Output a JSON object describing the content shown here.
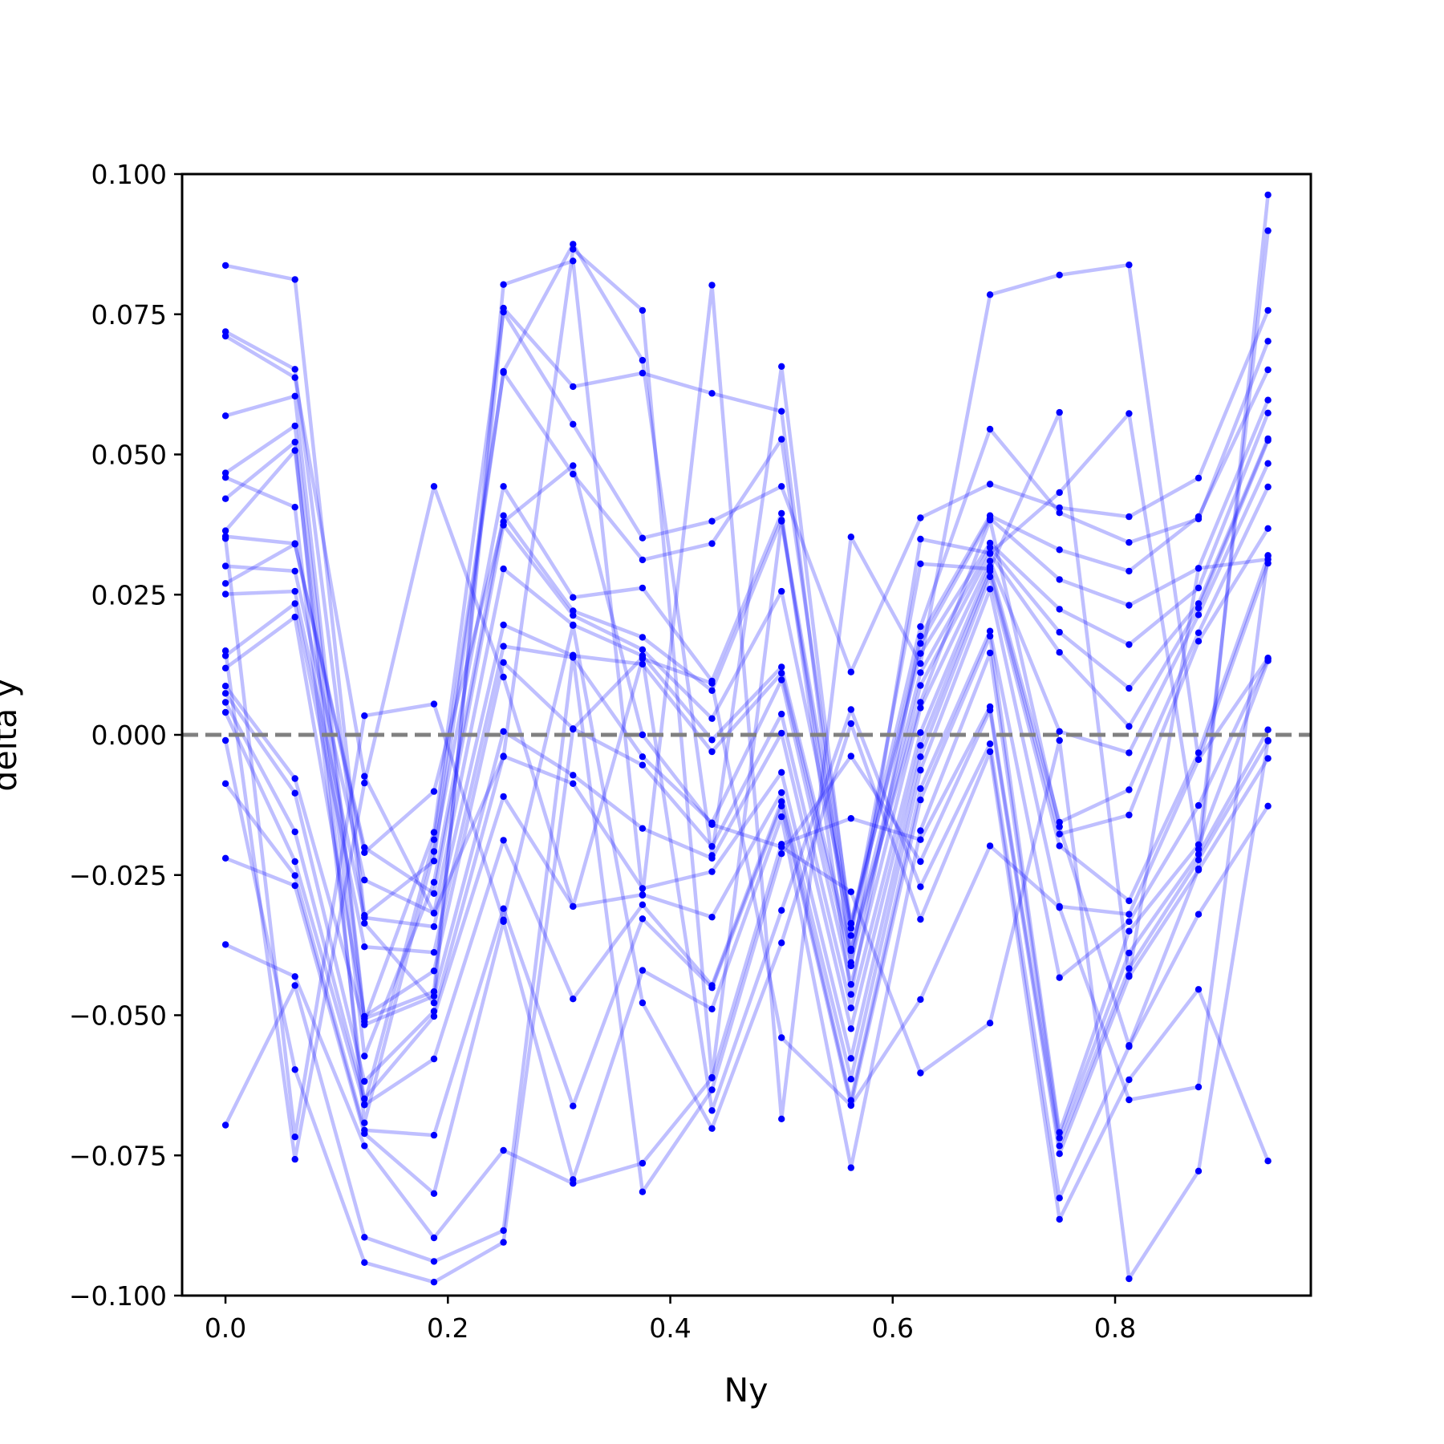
{
  "chart_data": {
    "type": "line",
    "title": "",
    "xlabel": "Ny",
    "ylabel": "delta y",
    "xlim": [
      -0.039,
      0.976
    ],
    "ylim": [
      -0.1,
      0.1
    ],
    "x_ticks": [
      "0.0",
      "0.2",
      "0.4",
      "0.6",
      "0.8"
    ],
    "x_tick_values": [
      0.0,
      0.2,
      0.4,
      0.6,
      0.8
    ],
    "y_ticks": [
      "0.100",
      "0.075",
      "0.050",
      "0.025",
      "0.000",
      "−0.025",
      "−0.050",
      "−0.075",
      "−0.100"
    ],
    "y_tick_values": [
      0.1,
      0.075,
      0.05,
      0.025,
      0.0,
      -0.025,
      -0.05,
      -0.075,
      -0.1
    ],
    "reference_line": {
      "y": 0.0,
      "style": "dashed",
      "color": "#808080"
    },
    "line_color": "#0000ff",
    "line_alpha": 0.25,
    "marker_color": "#0000ff",
    "grid": false,
    "x": [
      0.0,
      0.0625,
      0.125,
      0.1875,
      0.25,
      0.3125,
      0.375,
      0.4375,
      0.5,
      0.5625,
      0.625,
      0.6875,
      0.75,
      0.8125,
      0.875,
      0.9375
    ],
    "series": [
      {
        "values": [
          0.0837,
          0.0812,
          -0.0322,
          -0.0225,
          0.0648,
          0.0875,
          0.0668,
          -0.0215,
          0.0657,
          -0.0358,
          0.0305,
          0.0296,
          0.0575,
          -0.0429,
          0.0297,
          0.0313
        ]
      },
      {
        "values": [
          0.0719,
          0.0652,
          -0.0336,
          -0.0478,
          0.0803,
          0.0845,
          -0.0286,
          0.0802,
          -0.0685,
          0.0353,
          0.0127,
          0.0785,
          0.082,
          0.0838,
          -0.0044,
          0.0137
        ]
      },
      {
        "values": [
          0.0711,
          0.0637,
          -0.0074,
          -0.0318,
          -0.0039,
          0.0866,
          0.0757,
          -0.0611,
          0.0381,
          -0.0382,
          0.0058,
          0.0383,
          -0.0164,
          -0.0554,
          -0.0239,
          0.0963
        ]
      },
      {
        "values": [
          0.0569,
          0.0604,
          -0.0506,
          -0.0458,
          0.0761,
          0.0621,
          0.0645,
          0.0609,
          0.0577,
          -0.0412,
          0.0349,
          0.0324,
          0.0432,
          0.0573,
          -0.0204,
          0.0899
        ]
      },
      {
        "values": [
          0.0467,
          0.0551,
          -0.0511,
          -0.0174,
          0.0754,
          0.0554,
          0.0351,
          0.0381,
          0.0443,
          0.0112,
          0.0387,
          0.0447,
          0.0405,
          0.0389,
          0.0458,
          0.0757
        ]
      },
      {
        "values": [
          0.0459,
          0.0406,
          -0.0659,
          -0.0187,
          0.0646,
          0.0465,
          0.0312,
          0.0341,
          0.0527,
          -0.0336,
          0.0193,
          0.0545,
          0.0396,
          0.0343,
          0.0385,
          0.0702
        ]
      },
      {
        "values": [
          0.0421,
          0.0522,
          -0.0692,
          -0.0208,
          0.0443,
          0.0245,
          0.0262,
          0.0096,
          0.0395,
          -0.0463,
          0.0176,
          0.0391,
          0.033,
          0.0292,
          0.0389,
          0.0651
        ]
      },
      {
        "values": [
          0.0364,
          0.0507,
          -0.0573,
          -0.0263,
          0.0391,
          0.0221,
          0.0174,
          0.0079,
          0.0383,
          -0.0345,
          0.0163,
          0.0386,
          0.0277,
          0.0231,
          0.0297,
          0.0597
        ]
      },
      {
        "values": [
          0.0354,
          0.0341,
          -0.0201,
          -0.0283,
          0.0374,
          0.0213,
          0.0152,
          0.0029,
          0.0256,
          -0.0337,
          0.0145,
          0.0342,
          0.0224,
          0.0161,
          0.0262,
          0.0574
        ]
      },
      {
        "values": [
          0.0301,
          0.0292,
          -0.0259,
          -0.0318,
          0.0296,
          0.0196,
          0.0141,
          -0.0009,
          0.0121,
          -0.0385,
          0.0111,
          0.0334,
          0.0183,
          0.0083,
          0.0234,
          0.0528
        ]
      },
      {
        "values": [
          0.0251,
          0.0256,
          -0.0326,
          -0.0342,
          0.0196,
          0.0141,
          0.0126,
          -0.003,
          0.011,
          -0.0406,
          0.0088,
          0.0323,
          0.0147,
          0.0015,
          0.0226,
          0.0525
        ]
      },
      {
        "values": [
          0.0141,
          0.0234,
          -0.0378,
          -0.0388,
          0.0158,
          0.0138,
          -0.0039,
          -0.0157,
          0.0098,
          -0.0445,
          0.0048,
          0.031,
          0.0006,
          -0.0032,
          0.0214,
          0.0484
        ]
      },
      {
        "values": [
          0.0119,
          0.021,
          -0.0502,
          -0.0421,
          0.0129,
          0.0011,
          -0.0054,
          -0.0199,
          0.0037,
          -0.0487,
          0.0004,
          0.03,
          -0.0156,
          -0.0098,
          0.0182,
          0.0442
        ]
      },
      {
        "values": [
          0.0087,
          -0.0078,
          -0.0517,
          -0.0466,
          0.0006,
          -0.0072,
          -0.0167,
          -0.022,
          0.0003,
          -0.0524,
          -0.0019,
          0.0292,
          -0.0177,
          -0.0143,
          0.0167,
          0.0368
        ]
      },
      {
        "values": [
          0.0074,
          -0.0104,
          -0.0618,
          -0.0493,
          -0.0038,
          -0.0087,
          -0.0274,
          -0.0244,
          -0.0067,
          -0.0577,
          -0.0039,
          0.0282,
          -0.0198,
          -0.0296,
          -0.0032,
          0.0319
        ]
      },
      {
        "values": [
          0.0058,
          -0.0173,
          -0.0649,
          -0.0502,
          -0.011,
          -0.0306,
          -0.0285,
          -0.0325,
          -0.0103,
          -0.0614,
          -0.0063,
          0.026,
          -0.0306,
          -0.032,
          -0.0044,
          0.0306
        ]
      },
      {
        "values": [
          0.004,
          -0.0226,
          -0.066,
          -0.0578,
          -0.0188,
          -0.0471,
          -0.0303,
          -0.0447,
          -0.0119,
          -0.0652,
          -0.0096,
          0.0185,
          -0.0433,
          -0.0333,
          -0.0126,
          0.0135
        ]
      },
      {
        "values": [
          -0.0087,
          -0.0251,
          -0.0705,
          -0.0714,
          -0.031,
          -0.0662,
          -0.0328,
          -0.0451,
          -0.0127,
          -0.066,
          -0.0116,
          0.0176,
          -0.0709,
          -0.035,
          -0.0196,
          0.0132
        ]
      },
      {
        "values": [
          -0.022,
          -0.0269,
          -0.0711,
          -0.0818,
          -0.0333,
          -0.0793,
          -0.042,
          -0.0489,
          -0.0146,
          -0.0772,
          -0.0171,
          0.0146,
          -0.0719,
          -0.0389,
          -0.0213,
          0.0009
        ]
      },
      {
        "values": [
          -0.0374,
          -0.0431,
          -0.0733,
          -0.0897,
          -0.0741,
          -0.08,
          -0.0764,
          -0.0612,
          -0.0195,
          -0.0149,
          -0.0187,
          0.005,
          -0.0733,
          -0.0417,
          -0.0223,
          -0.0011
        ]
      },
      {
        "values": [
          -0.0696,
          -0.0447,
          -0.0896,
          -0.0939,
          -0.0884,
          0.0142,
          -0.0815,
          -0.0633,
          -0.0212,
          -0.0038,
          -0.0226,
          0.0044,
          -0.0747,
          -0.0431,
          -0.0241,
          -0.0042
        ]
      },
      {
        "values": [
          -0.001,
          -0.0597,
          -0.0941,
          -0.0976,
          -0.0905,
          0.001,
          0.0138,
          -0.067,
          -0.0313,
          0.0045,
          -0.0271,
          -0.0016,
          -0.0826,
          -0.0556,
          -0.032,
          -0.0127
        ]
      },
      {
        "values": [
          0.035,
          -0.0717,
          0.0034,
          0.0055,
          -0.033,
          0.0195,
          -0.0478,
          -0.0702,
          -0.0371,
          0.002,
          -0.0329,
          -0.003,
          -0.0864,
          -0.0615,
          -0.0454,
          -0.076
        ]
      },
      {
        "values": [
          0.015,
          -0.0757,
          -0.0086,
          0.0443,
          0.0103,
          -0.0306,
          0.0136,
          0.0092,
          -0.054,
          -0.0661,
          -0.0472,
          -0.0198,
          -0.0308,
          -0.0651,
          -0.0628,
          0.032
        ]
      },
      {
        "values": [
          0.027,
          0.034,
          -0.021,
          -0.0101,
          0.038,
          0.048,
          0.0,
          -0.016,
          -0.02,
          -0.028,
          -0.0603,
          -0.0514,
          -0.001,
          -0.097,
          -0.0778,
          -0.001
        ]
      }
    ]
  }
}
